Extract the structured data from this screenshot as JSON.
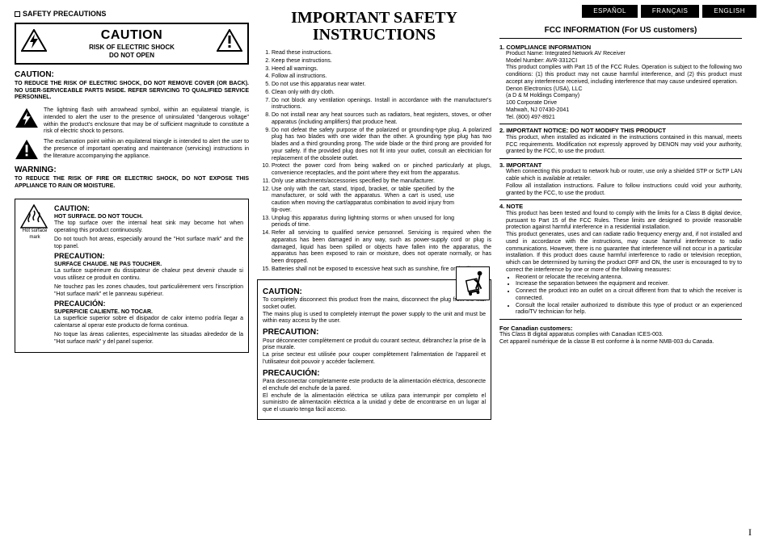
{
  "lang_tabs": [
    "ESPAÑOL",
    "FRANÇAIS",
    "ENGLISH"
  ],
  "page_number": "I",
  "col1": {
    "section_title": "SAFETY PRECAUTIONS",
    "caution_box": {
      "line1": "CAUTION",
      "line2": "RISK OF ELECTRIC SHOCK",
      "line3": "DO NOT OPEN"
    },
    "caution_h": "CAUTION:",
    "caution_p": "TO REDUCE THE RISK OF ELECTRIC SHOCK, DO NOT REMOVE COVER (OR BACK). NO USER-SERVICEABLE PARTS INSIDE. REFER SERVICING TO QUALIFIED SERVICE PERSONNEL.",
    "bolt_p": "The lightning flash with arrowhead symbol, within an equilateral triangle, is intended to alert the user to the presence of uninsulated \"dangerous voltage\" within the product's enclosure that may be of sufficient magnitude to constitute a risk of electric shock to persons.",
    "excl_p": "The exclamation point within an equilateral triangle is intended to alert the user to the presence of important operating and maintenance (servicing) instructions in the literature accompanying the appliance.",
    "warning_h": "WARNING:",
    "warning_p": "TO REDUCE THE RISK OF FIRE OR ELECTRIC SHOCK, DO NOT EXPOSE THIS APPLIANCE TO RAIN OR MOISTURE.",
    "hot": {
      "mark": "Hot surface mark",
      "en_h": "CAUTION:",
      "en_sub": "HOT SURFACE. DO NOT TOUCH.",
      "en_p1": "The top surface over the internal heat sink may become hot when operating this product continuously.",
      "en_p2": "Do not touch hot areas, especially around the \"Hot surface mark\" and the top panel.",
      "fr_h": "PRECAUTION:",
      "fr_sub": "SURFACE CHAUDE. NE PAS TOUCHER.",
      "fr_p1": "La surface supérieure du dissipateur de chaleur peut devenir chaude si vous utilisez ce produit en continu.",
      "fr_p2": "Ne touchez pas les zones chaudes, tout particulièrement vers l'inscription \"Hot surface mark\" et le panneau supérieur.",
      "es_h": "PRECAUCIÓN:",
      "es_sub": "SUPERFICIE CALIENTE. NO TOCAR.",
      "es_p1": "La superficie superior sobre el disipador de calor interno podría llegar a calentarse al operar este producto de forma continua.",
      "es_p2": "No toque las áreas calientes, especialmente las situadas alrededor de la \"Hot surface mark\" y del panel superior."
    }
  },
  "col2": {
    "title": "IMPORTANT SAFETY INSTRUCTIONS",
    "items": [
      "Read these instructions.",
      "Keep these instructions.",
      "Heed all warnings.",
      "Follow all instructions.",
      "Do not use this apparatus near water.",
      "Clean only with dry cloth.",
      "Do not block any ventilation openings.\nInstall in accordance with the manufacturer's instructions.",
      "Do not install near any heat sources such as radiators, heat registers, stoves, or other apparatus (including amplifiers) that produce heat.",
      "Do not defeat the safety purpose of the polarized or grounding-type plug. A polarized plug has two blades with one wider than the other. A grounding type plug has two blades and a third grounding prong. The wide blade or the third prong are provided for your safety. If the provided plug does not fit into your outlet, consult an electrician for replacement of the obsolete outlet.",
      "Protect the power cord from being walked on or pinched particularly at plugs, convenience receptacles, and the point where they exit from the apparatus.",
      "Only use attachments/accessories specified by the manufacturer.",
      "Use only with the cart, stand, tripod, bracket, or table specified by the manufacturer, or sold with the apparatus. When a cart is used, use caution when moving the cart/apparatus combination to avoid injury from tip-over.",
      "Unplug this apparatus during lightning storms or when unused for long periods of time.",
      "Refer all servicing to qualified service personnel. Servicing is required when the apparatus has been damaged in any way, such as power-supply cord or plug is damaged, liquid has been spilled or objects have fallen into the apparatus, the apparatus has been exposed to rain or moisture, does not operate normally, or has been dropped.",
      "Batteries shall not be exposed to excessive heat such as sunshine, fire or the like."
    ],
    "disc": {
      "en_h": "CAUTION:",
      "en_p1": "To completely disconnect this product from the mains, disconnect the plug from the wall socket outlet.",
      "en_p2": "The mains plug is used to completely interrupt the power supply to the unit and must be within easy access by the user.",
      "fr_h": "PRECAUTION:",
      "fr_p1": "Pour déconnecter complètement ce produit du courant secteur, débranchez la prise de la prise murale.",
      "fr_p2": "La prise secteur est utilisée pour couper complètement l'alimentation de l'appareil et l'utilisateur doit pouvoir y accéder facilement.",
      "es_h": "PRECAUCIÓN:",
      "es_p1": "Para desconectar completamente este producto de la alimentación eléctrica, desconecte el enchufe del enchufe de la pared.",
      "es_p2": "El enchufe de la alimentación eléctrica se utiliza para interrumpir por completo el suministro de alimentación eléctrica a la unidad y debe de encontrarse en un lugar al que el usuario tenga fácil acceso."
    }
  },
  "col3": {
    "title": "FCC INFORMATION (For US customers)",
    "s1": {
      "h": "1. COMPLIANCE INFORMATION",
      "l1": "Product Name: Integrated Network AV Receiver",
      "l2": "Model Number: AVR-3312CI",
      "p1": "This product complies with Part 15 of the FCC Rules. Operation is subject to the following two conditions: (1) this product may not cause harmful interference, and (2) this product must accept any interference received, including interference that may cause undesired operation.",
      "a1": "Denon Electronics (USA), LLC",
      "a2": "(a D & M Holdings Company)",
      "a3": "100 Corporate Drive",
      "a4": "Mahwah, NJ 07430-2041",
      "a5": "Tel. (800) 497-8921"
    },
    "s2": {
      "h": "2. IMPORTANT NOTICE: DO NOT MODIFY THIS PRODUCT",
      "p": "This product, when installed as indicated in the instructions contained in this manual, meets FCC requirements. Modification not expressly approved by DENON may void your authority, granted by the FCC, to use the product."
    },
    "s3": {
      "h": "3. IMPORTANT",
      "p1": "When connecting this product to network hub or router, use only a shielded STP or ScTP LAN cable which is available at retailer.",
      "p2": "Follow all installation instructions. Failure to follow instructions could void your authority, granted by the FCC, to use the product."
    },
    "s4": {
      "h": "4. NOTE",
      "p1": "This product has been tested and found to comply with the limits for a Class B digital device, pursuant to Part 15 of the FCC Rules. These limits are designed to provide reasonable protection against harmful interference in a residential installation.",
      "p2": "This product generates, uses and can radiate radio frequency energy and, if not installed and used in accordance with the instructions, may cause harmful interference to radio communications. However, there is no guarantee that interference will not occur in a particular installation. If this product does cause harmful interference to radio or television reception, which can be determined by turning the product OFF and ON, the user is encouraged to try to correct the interference by one or more of the following measures:",
      "b1": "Reorient or relocate the receiving antenna.",
      "b2": "Increase the separation between the equipment and receiver.",
      "b3": "Connect the product into an outlet on a circuit different from that to which the receiver is connected.",
      "b4": "Consult the local retailer authorized to distribute this type of product or an experienced radio/TV technician for help."
    },
    "can": {
      "h": "For Canadian customers:",
      "p1": "This Class B digital apparatus complies with Canadian ICES-003.",
      "p2": "Cet appareil numérique de la classe B est conforme à la norme NMB-003 du Canada."
    }
  }
}
